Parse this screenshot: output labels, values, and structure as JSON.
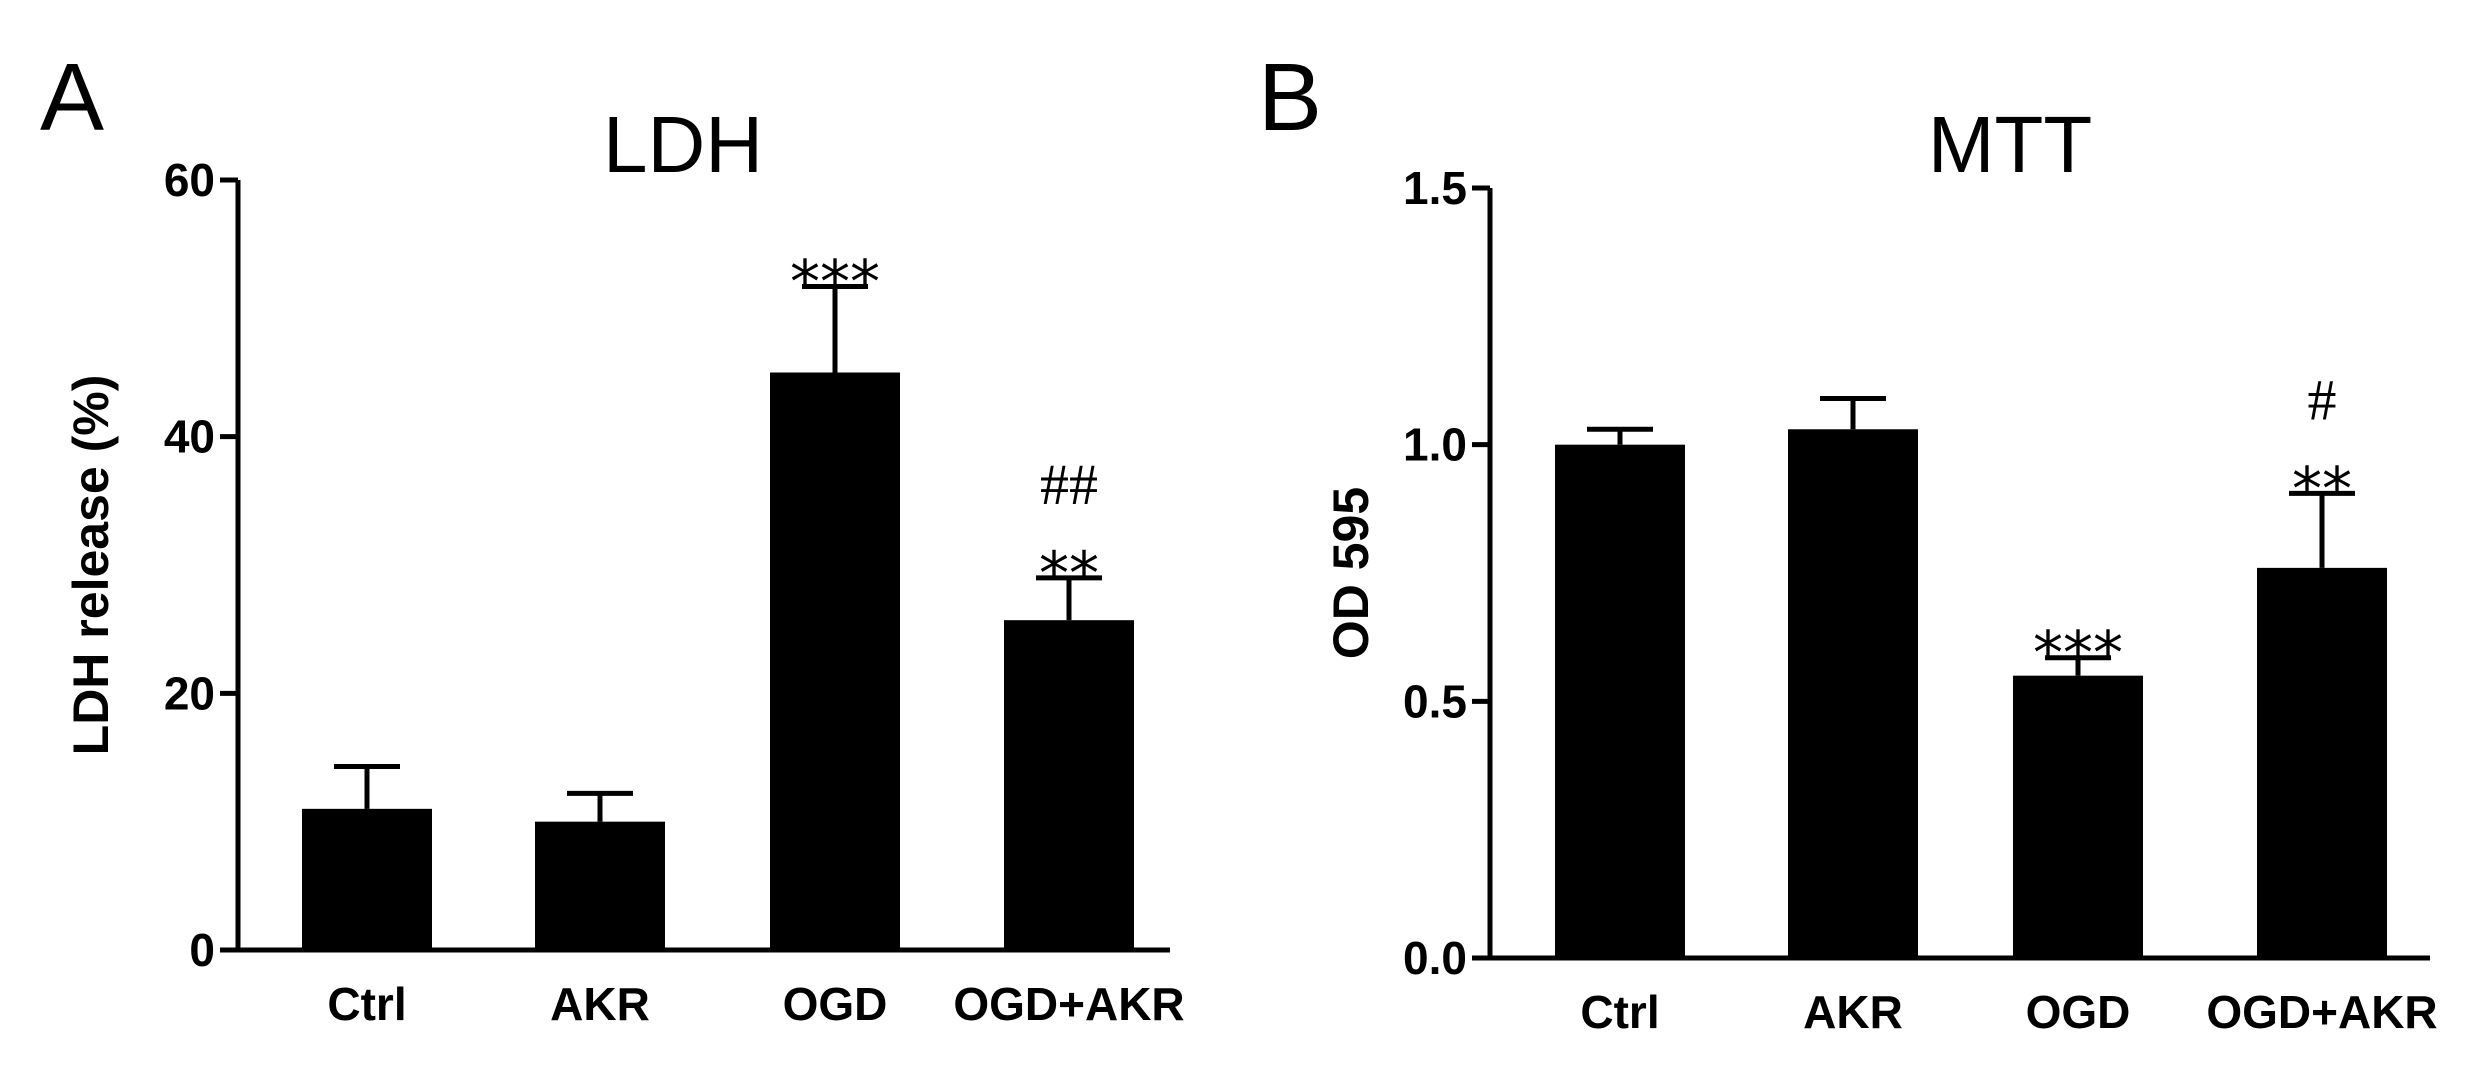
{
  "chart_data": [
    {
      "panel": "A",
      "type": "bar",
      "title": "LDH",
      "xlabel": "",
      "ylabel": "LDH release (%)",
      "ylim": [
        0,
        60
      ],
      "yticks": [
        0,
        20,
        40,
        60
      ],
      "categories": [
        "Ctrl",
        "AKR",
        "OGD",
        "OGD+AKR"
      ],
      "values": [
        11,
        10,
        45,
        25.7
      ],
      "errors": [
        3.3,
        2.2,
        6.7,
        3.3
      ],
      "annotations": [
        {
          "category": "OGD",
          "lines": [
            "***"
          ]
        },
        {
          "category": "OGD+AKR",
          "lines": [
            "##",
            "**"
          ]
        }
      ],
      "bar_color": "#000000"
    },
    {
      "panel": "B",
      "type": "bar",
      "title": "MTT",
      "xlabel": "",
      "ylabel": "OD 595",
      "ylim": [
        0,
        1.5
      ],
      "yticks": [
        "0.0",
        "0.5",
        "1.0",
        "1.5"
      ],
      "categories": [
        "Ctrl",
        "AKR",
        "OGD",
        "OGD+AKR"
      ],
      "values": [
        1.0,
        1.03,
        0.55,
        0.76
      ],
      "errors": [
        0.03,
        0.06,
        0.035,
        0.145
      ],
      "annotations": [
        {
          "category": "OGD",
          "lines": [
            "***"
          ]
        },
        {
          "category": "OGD+AKR",
          "lines": [
            "#",
            "**"
          ]
        }
      ],
      "bar_color": "#000000"
    }
  ]
}
